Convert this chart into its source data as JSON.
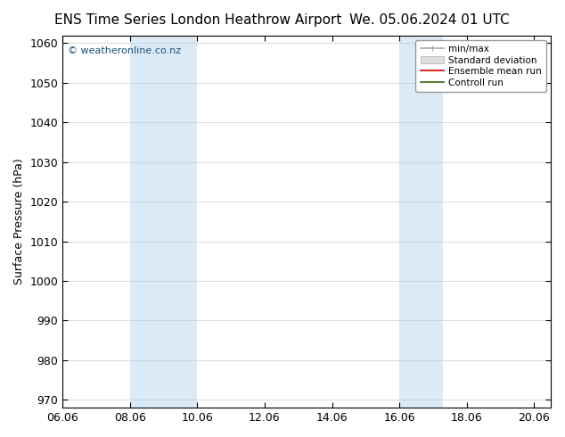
{
  "title_left": "ENS Time Series London Heathrow Airport",
  "title_right": "We. 05.06.2024 01 UTC",
  "ylabel": "Surface Pressure (hPa)",
  "ylim": [
    968,
    1062
  ],
  "yticks": [
    970,
    980,
    990,
    1000,
    1010,
    1020,
    1030,
    1040,
    1050,
    1060
  ],
  "xlim": [
    0.0,
    14.5
  ],
  "xtick_positions": [
    0.0,
    2.0,
    4.0,
    6.0,
    8.0,
    10.0,
    12.0,
    14.0
  ],
  "xtick_labels": [
    "06.06",
    "08.06",
    "10.06",
    "12.06",
    "14.06",
    "16.06",
    "18.06",
    "20.06"
  ],
  "shaded_bands": [
    {
      "xmin": 2.0,
      "xmax": 4.0
    },
    {
      "xmin": 10.0,
      "xmax": 11.3
    }
  ],
  "band_color": "#daeaf7",
  "background_color": "#ffffff",
  "watermark_text": "© weatheronline.co.nz",
  "watermark_color": "#1a5276",
  "grid_color": "#cccccc",
  "title_fontsize": 11,
  "tick_fontsize": 9,
  "label_fontsize": 9
}
